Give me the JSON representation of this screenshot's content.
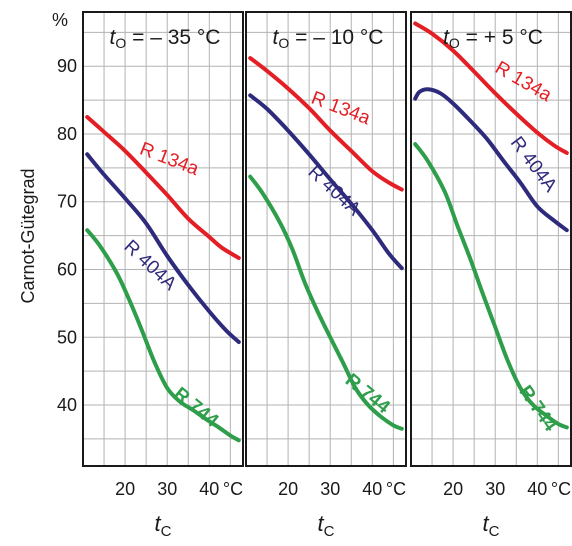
{
  "y_unit_label": "%",
  "y_axis_label": "Carnot-Gütegrad",
  "x_unit_label": "°C",
  "chart_data": [
    {
      "type": "line",
      "title_prefix": "t",
      "title_sub": "O",
      "title_value": "= – 35 °C",
      "xlabel_main": "t",
      "xlabel_sub": "C",
      "xlim": [
        10,
        48
      ],
      "ylim": [
        31,
        98
      ],
      "xticks": [
        "20",
        "30",
        "40"
      ],
      "yticks": [
        "40",
        "50",
        "60",
        "70",
        "80",
        "90"
      ],
      "grid": true,
      "series": [
        {
          "name": "R 134a",
          "color": "#e31e24",
          "x": [
            11,
            15,
            20,
            25,
            30,
            35,
            40,
            43,
            47
          ],
          "y": [
            82.5,
            80.3,
            77.5,
            74.3,
            71,
            67.5,
            64.8,
            63.2,
            61.7
          ]
        },
        {
          "name": "R 404A",
          "color": "#2e2a7c",
          "x": [
            11,
            15,
            20,
            25,
            30,
            35,
            40,
            44,
            47
          ],
          "y": [
            77,
            74,
            70.5,
            66.8,
            62,
            57.7,
            53.8,
            51,
            49.3
          ]
        },
        {
          "name": "R 744",
          "color": "#2e9e4a",
          "x": [
            11,
            14,
            18,
            21,
            24,
            27,
            30,
            33,
            36,
            39,
            42,
            45,
            47
          ],
          "y": [
            65.8,
            63.5,
            59.5,
            55.5,
            51,
            46.3,
            42.5,
            40.5,
            39.3,
            38,
            36.8,
            35.5,
            34.8
          ]
        }
      ]
    },
    {
      "type": "line",
      "title_prefix": "t",
      "title_sub": "O",
      "title_value": "= – 10 °C",
      "xlabel_main": "t",
      "xlabel_sub": "C",
      "xlim": [
        10,
        48
      ],
      "ylim": [
        31,
        98
      ],
      "xticks": [
        "20",
        "30",
        "40"
      ],
      "yticks": [
        "40",
        "50",
        "60",
        "70",
        "80",
        "90"
      ],
      "grid": true,
      "series": [
        {
          "name": "R 134a",
          "color": "#e31e24",
          "x": [
            11,
            15,
            20,
            25,
            30,
            35,
            40,
            44,
            47
          ],
          "y": [
            91.2,
            89.3,
            86.7,
            83.8,
            80.5,
            77.5,
            74.5,
            72.8,
            71.8
          ]
        },
        {
          "name": "R 404A",
          "color": "#2e2a7c",
          "x": [
            11,
            15,
            20,
            25,
            30,
            35,
            40,
            44,
            47
          ],
          "y": [
            85.7,
            83.7,
            80.5,
            77,
            73.3,
            69.7,
            65.8,
            62.3,
            60.2
          ]
        },
        {
          "name": "R 744",
          "color": "#2e9e4a",
          "x": [
            11,
            14,
            18,
            21,
            24,
            27,
            30,
            33,
            36,
            39,
            42,
            45,
            47
          ],
          "y": [
            73.7,
            71.2,
            67,
            63,
            58,
            53.8,
            50,
            46.3,
            42.5,
            40,
            38.3,
            37,
            36.5
          ]
        }
      ]
    },
    {
      "type": "line",
      "title_prefix": "t",
      "title_sub": "O",
      "title_value": "= + 5 °C",
      "xlabel_main": "t",
      "xlabel_sub": "C",
      "xlim": [
        10,
        48
      ],
      "ylim": [
        31,
        98
      ],
      "xticks": [
        "20",
        "30",
        "40"
      ],
      "yticks": [
        "40",
        "50",
        "60",
        "70",
        "80",
        "90"
      ],
      "grid": true,
      "series": [
        {
          "name": "R 134a",
          "color": "#e31e24",
          "x": [
            11,
            15,
            20,
            25,
            30,
            35,
            40,
            44,
            47
          ],
          "y": [
            96.3,
            94.8,
            92.3,
            89.2,
            86,
            83,
            80.2,
            78.3,
            77.2
          ]
        },
        {
          "name": "R 404A",
          "color": "#2e2a7c",
          "x": [
            11,
            12,
            14,
            17,
            20,
            24,
            28,
            32,
            36,
            40,
            44,
            47
          ],
          "y": [
            85.2,
            86.2,
            86.6,
            86,
            84.5,
            82,
            79.3,
            76,
            72.8,
            69.3,
            67.2,
            65.8
          ]
        },
        {
          "name": "R 744",
          "color": "#2e9e4a",
          "x": [
            11,
            14,
            18,
            21,
            24,
            27,
            30,
            33,
            36,
            39,
            42,
            45,
            47
          ],
          "y": [
            78.5,
            76,
            71.5,
            66.5,
            61.7,
            56.5,
            51.5,
            46.5,
            42.5,
            40,
            38.5,
            37.2,
            36.7
          ]
        }
      ]
    }
  ]
}
